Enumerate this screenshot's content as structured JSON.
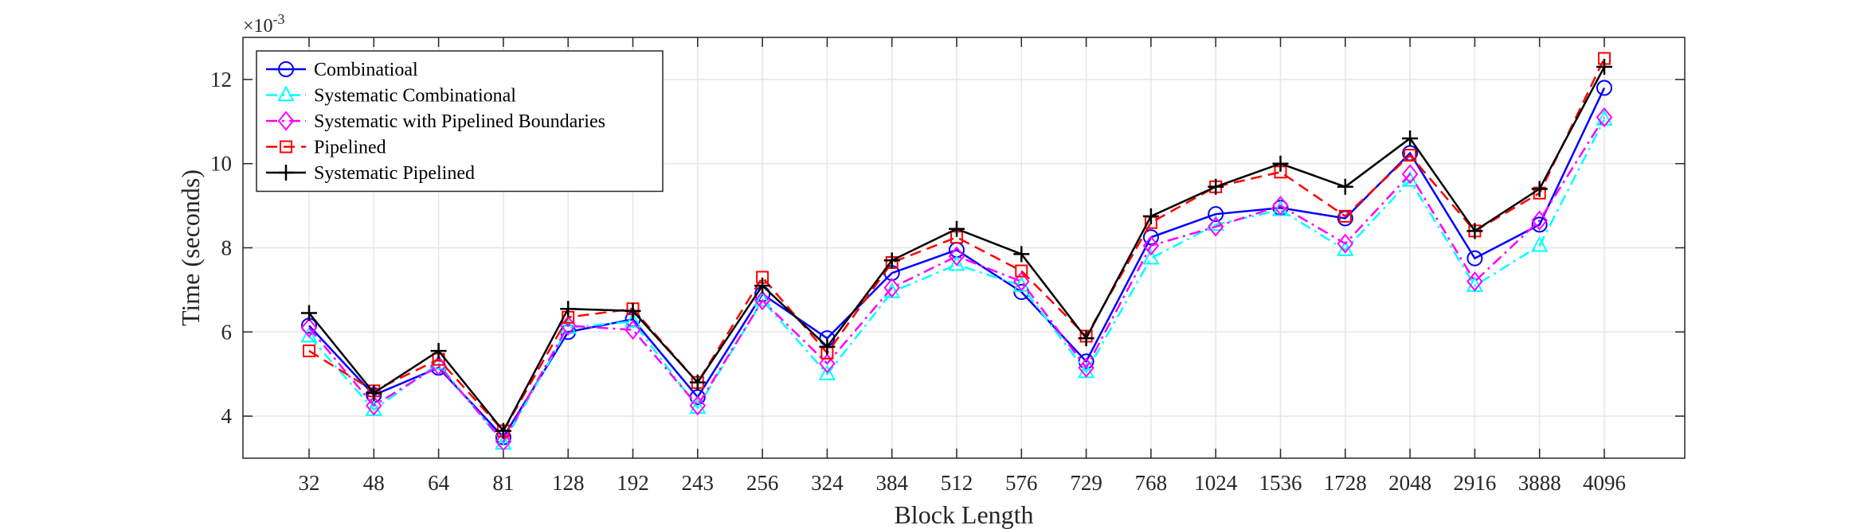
{
  "chart_data": {
    "type": "line",
    "xlabel": "Block Length",
    "ylabel": "Time (seconds)",
    "y_exponent_label": "×10",
    "y_exponent_power": "-3",
    "categories": [
      "32",
      "48",
      "64",
      "81",
      "128",
      "192",
      "243",
      "256",
      "324",
      "384",
      "512",
      "576",
      "729",
      "768",
      "1024",
      "1536",
      "1728",
      "2048",
      "2916",
      "3888",
      "4096"
    ],
    "ylim": [
      3.0,
      13.0
    ],
    "yticks": [
      4,
      6,
      8,
      10,
      12
    ],
    "grid": true,
    "legend_placement": "top-left",
    "series": [
      {
        "name": "Combinatioal",
        "color": "#0000ff",
        "dash": "solid",
        "marker": "circle",
        "values": [
          6.15,
          4.5,
          5.15,
          3.5,
          6.0,
          6.3,
          4.45,
          6.9,
          5.85,
          7.4,
          7.95,
          6.95,
          5.3,
          8.25,
          8.8,
          8.95,
          8.7,
          10.25,
          7.75,
          8.55,
          11.8
        ]
      },
      {
        "name": "Systematic Combinational",
        "color": "#00ffff",
        "dash": "dashdot",
        "marker": "triangle",
        "values": [
          5.9,
          4.15,
          5.25,
          3.35,
          6.1,
          6.25,
          4.2,
          6.75,
          5.0,
          6.95,
          7.6,
          7.1,
          5.05,
          7.75,
          8.55,
          8.9,
          7.95,
          9.6,
          7.1,
          8.05,
          11.05
        ]
      },
      {
        "name": "Systematic with Pipelined Boundaries",
        "color": "#ff00ff",
        "dash": "dashdot",
        "marker": "diamond",
        "values": [
          6.1,
          4.25,
          5.2,
          3.4,
          6.15,
          6.05,
          4.25,
          6.75,
          5.25,
          7.05,
          7.8,
          7.2,
          5.15,
          8.05,
          8.5,
          9.0,
          8.1,
          9.75,
          7.2,
          8.65,
          11.1
        ]
      },
      {
        "name": "Pipelined",
        "color": "#ff0000",
        "dash": "dashed",
        "marker": "square",
        "values": [
          5.55,
          4.6,
          5.35,
          3.65,
          6.35,
          6.55,
          4.8,
          7.3,
          5.5,
          7.65,
          8.25,
          7.45,
          5.9,
          8.6,
          9.45,
          9.8,
          8.75,
          10.2,
          8.4,
          9.3,
          12.5
        ]
      },
      {
        "name": "Systematic Pipelined",
        "color": "#000000",
        "dash": "solid",
        "marker": "plus",
        "values": [
          6.45,
          4.55,
          5.55,
          3.65,
          6.55,
          6.5,
          4.8,
          7.1,
          5.65,
          7.7,
          8.45,
          7.85,
          5.85,
          8.75,
          9.45,
          10.0,
          9.45,
          10.6,
          8.4,
          9.4,
          12.3
        ]
      }
    ]
  }
}
